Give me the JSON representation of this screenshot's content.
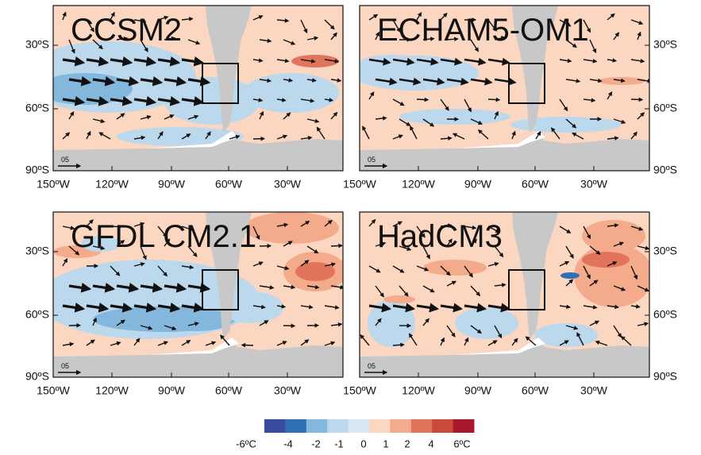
{
  "panels": [
    {
      "title": "CCSM2",
      "scale_label": "05"
    },
    {
      "title": "ECHAM5-OM1",
      "scale_label": "05"
    },
    {
      "title": "GFDL CM2.1",
      "scale_label": "05"
    },
    {
      "title": "HadCM3",
      "scale_label": "05"
    }
  ],
  "lat_labels": [
    "30ºS",
    "60ºS",
    "90ºS"
  ],
  "lon_labels": [
    "150ºW",
    "120ºW",
    "90ºW",
    "60ºW",
    "30ºW"
  ],
  "colorbar": {
    "colors": [
      "#3a4aa0",
      "#2f6fb5",
      "#84b7dc",
      "#bcd8ec",
      "#d8e7f2",
      "#fbd6c0",
      "#f4ab8c",
      "#e3745c",
      "#cc4a3c",
      "#a8182c"
    ],
    "labels": [
      "-6ºC",
      "-4",
      "-2",
      "-1",
      "0",
      "1",
      "2",
      "4",
      "6ºC"
    ]
  }
}
